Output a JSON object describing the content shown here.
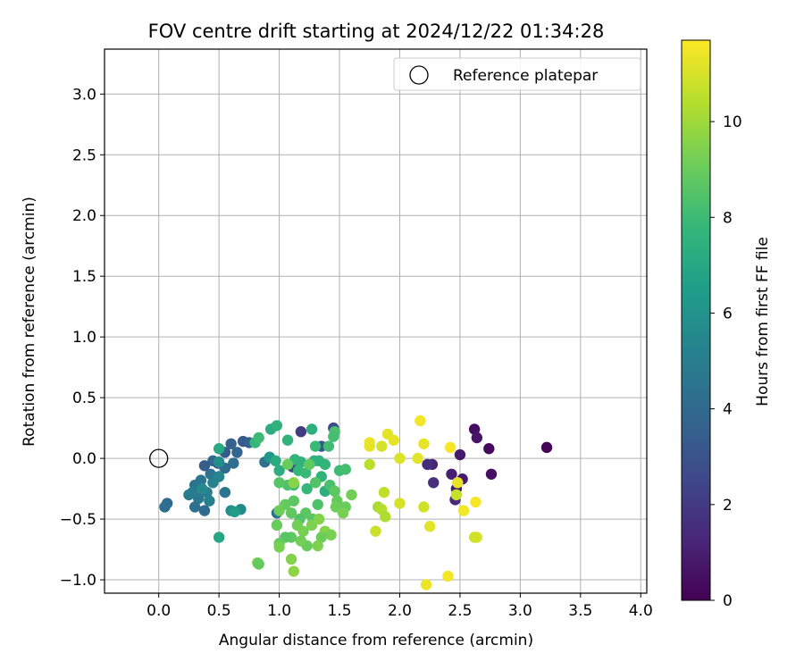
{
  "chart_data": {
    "type": "scatter",
    "title": "FOV centre drift starting at 2024/12/22 01:34:28",
    "xlabel": "Angular distance from reference (arcmin)",
    "ylabel": "Rotation from reference (arcmin)",
    "xlim": [
      -0.45,
      4.05
    ],
    "ylim": [
      -1.11,
      3.37
    ],
    "xticks": [
      "0.0",
      "0.5",
      "1.0",
      "1.5",
      "2.0",
      "2.5",
      "3.0",
      "3.5",
      "4.0"
    ],
    "yticks": [
      "−1.0",
      "−0.5",
      "0.0",
      "0.5",
      "1.0",
      "1.5",
      "2.0",
      "2.5",
      "3.0"
    ],
    "grid": true,
    "legend": {
      "placement": "top-right",
      "entries": [
        "Reference platepar"
      ]
    },
    "reference_point": {
      "x": 0.0,
      "y": 0.0
    },
    "colorbar": {
      "label": "Hours from first FF file",
      "range": [
        0,
        11.7
      ],
      "ticks": [
        "0",
        "2",
        "4",
        "6",
        "8",
        "10"
      ],
      "colormap": "viridis"
    },
    "series": [
      {
        "points": [
          [
            3.22,
            0.09,
            0.1
          ],
          [
            2.74,
            0.08,
            0.3
          ],
          [
            2.62,
            0.24,
            0.4
          ],
          [
            2.64,
            0.17,
            0.6
          ],
          [
            2.76,
            -0.13,
            0.5
          ],
          [
            2.5,
            0.03,
            0.8
          ],
          [
            2.43,
            -0.13,
            1.0
          ],
          [
            2.52,
            -0.17,
            0.9
          ],
          [
            2.47,
            -0.25,
            1.0
          ],
          [
            2.46,
            -0.34,
            1.3
          ],
          [
            2.27,
            -0.05,
            1.2
          ],
          [
            2.23,
            -0.05,
            1.5
          ],
          [
            2.28,
            -0.2,
            1.6
          ],
          [
            1.11,
            -0.07,
            2.5
          ],
          [
            1.18,
            0.22,
            2.1
          ],
          [
            1.35,
            0.1,
            3.0
          ],
          [
            1.45,
            0.25,
            2.6
          ],
          [
            0.7,
            0.14,
            3.2
          ],
          [
            0.75,
            0.13,
            3.5
          ],
          [
            0.65,
            0.05,
            3.8
          ],
          [
            0.6,
            0.12,
            3.6
          ],
          [
            0.55,
            0.05,
            3.4
          ],
          [
            0.49,
            -0.04,
            3.3
          ],
          [
            0.55,
            -0.08,
            4.1
          ],
          [
            0.62,
            -0.04,
            4.2
          ],
          [
            0.45,
            -0.02,
            3.9
          ],
          [
            0.43,
            -0.13,
            4.4
          ],
          [
            0.38,
            -0.06,
            3.4
          ],
          [
            0.35,
            -0.18,
            4.6
          ],
          [
            0.3,
            -0.22,
            4.5
          ],
          [
            0.28,
            -0.28,
            4.8
          ],
          [
            0.25,
            -0.3,
            4.9
          ],
          [
            0.33,
            -0.33,
            4.7
          ],
          [
            0.4,
            -0.28,
            5.0
          ],
          [
            0.45,
            -0.2,
            5.2
          ],
          [
            0.5,
            -0.15,
            5.3
          ],
          [
            0.3,
            -0.4,
            4.3
          ],
          [
            0.38,
            -0.43,
            4.1
          ],
          [
            0.07,
            -0.37,
            4.0
          ],
          [
            0.05,
            -0.4,
            4.2
          ],
          [
            0.55,
            -0.28,
            4.6
          ],
          [
            0.42,
            -0.35,
            5.1
          ],
          [
            0.36,
            -0.25,
            5.5
          ],
          [
            0.5,
            -0.03,
            5.7
          ],
          [
            0.88,
            -0.03,
            4.3
          ],
          [
            0.98,
            -0.45,
            4.4
          ],
          [
            0.6,
            -0.43,
            5.8
          ],
          [
            0.68,
            -0.42,
            5.6
          ],
          [
            0.63,
            -0.44,
            6.4
          ],
          [
            0.92,
            0.01,
            6.2
          ],
          [
            0.93,
            0.24,
            7.3
          ],
          [
            0.98,
            0.27,
            7.5
          ],
          [
            0.5,
            0.08,
            7.1
          ],
          [
            0.5,
            -0.65,
            6.9
          ],
          [
            0.8,
            0.13,
            7.8
          ],
          [
            0.83,
            0.17,
            8.0
          ],
          [
            1.07,
            0.15,
            7.6
          ],
          [
            0.97,
            -0.02,
            7.2
          ],
          [
            1.0,
            -0.1,
            7.3
          ],
          [
            1.13,
            -0.01,
            7.7
          ],
          [
            1.18,
            -0.03,
            7.5
          ],
          [
            1.16,
            -0.1,
            7.8
          ],
          [
            1.22,
            -0.12,
            7.9
          ],
          [
            1.27,
            0.24,
            7.4
          ],
          [
            1.29,
            -0.02,
            7.6
          ],
          [
            1.33,
            -0.02,
            7.5
          ],
          [
            1.38,
            -0.05,
            7.7
          ],
          [
            1.3,
            0.1,
            7.9
          ],
          [
            1.41,
            0.1,
            8.1
          ],
          [
            1.46,
            0.22,
            8.3
          ],
          [
            1.45,
            0.18,
            8.2
          ],
          [
            1.5,
            -0.1,
            8.0
          ],
          [
            1.55,
            -0.09,
            8.2
          ],
          [
            1.38,
            -0.27,
            7.4
          ],
          [
            1.35,
            -0.15,
            7.6
          ],
          [
            1.23,
            -0.25,
            7.8
          ],
          [
            1.12,
            -0.22,
            8.0
          ],
          [
            1.07,
            -0.22,
            8.4
          ],
          [
            1.0,
            -0.2,
            8.6
          ],
          [
            1.25,
            -0.05,
            8.8
          ],
          [
            1.3,
            -0.2,
            8.5
          ],
          [
            1.42,
            -0.22,
            8.3
          ],
          [
            1.46,
            -0.27,
            8.7
          ],
          [
            1.48,
            -0.35,
            8.9
          ],
          [
            1.47,
            -0.4,
            9.1
          ],
          [
            1.55,
            -0.4,
            9.0
          ],
          [
            1.53,
            -0.45,
            9.3
          ],
          [
            1.6,
            -0.3,
            9.2
          ],
          [
            1.32,
            -0.38,
            8.4
          ],
          [
            1.28,
            -0.5,
            8.6
          ],
          [
            1.22,
            -0.45,
            8.7
          ],
          [
            1.17,
            -0.5,
            8.5
          ],
          [
            1.1,
            -0.45,
            8.8
          ],
          [
            1.05,
            -0.38,
            8.9
          ],
          [
            1.0,
            -0.43,
            9.1
          ],
          [
            0.98,
            -0.55,
            9.0
          ],
          [
            1.15,
            -0.55,
            9.2
          ],
          [
            1.2,
            -0.6,
            9.3
          ],
          [
            1.27,
            -0.55,
            9.4
          ],
          [
            1.33,
            -0.5,
            9.5
          ],
          [
            1.38,
            -0.6,
            9.6
          ],
          [
            1.43,
            -0.63,
            9.3
          ],
          [
            1.35,
            -0.65,
            9.1
          ],
          [
            1.32,
            -0.72,
            9.4
          ],
          [
            1.23,
            -0.72,
            9.0
          ],
          [
            1.18,
            -0.68,
            9.2
          ],
          [
            1.1,
            -0.65,
            8.8
          ],
          [
            1.05,
            -0.65,
            8.6
          ],
          [
            1.0,
            -0.7,
            8.9
          ],
          [
            1.0,
            -0.73,
            9.3
          ],
          [
            1.1,
            -0.83,
            9.5
          ],
          [
            1.12,
            -0.93,
            9.7
          ],
          [
            0.82,
            -0.86,
            9.3
          ],
          [
            0.83,
            -0.87,
            8.9
          ],
          [
            1.12,
            -0.35,
            8.7
          ],
          [
            1.07,
            -0.05,
            9.0
          ],
          [
            1.12,
            -0.2,
            9.6
          ],
          [
            1.75,
            -0.05,
            10.5
          ],
          [
            1.82,
            -0.4,
            10.2
          ],
          [
            1.85,
            -0.42,
            10.4
          ],
          [
            1.88,
            -0.48,
            10.3
          ],
          [
            1.87,
            -0.28,
            10.6
          ],
          [
            1.8,
            -0.6,
            10.8
          ],
          [
            1.85,
            0.1,
            11.0
          ],
          [
            1.9,
            0.2,
            11.2
          ],
          [
            1.95,
            0.15,
            11.3
          ],
          [
            1.75,
            0.13,
            11.4
          ],
          [
            1.75,
            0.1,
            11.3
          ],
          [
            2.0,
            0.0,
            11.1
          ],
          [
            2.15,
            0.0,
            11.2
          ],
          [
            2.17,
            0.31,
            11.5
          ],
          [
            2.2,
            0.12,
            11.3
          ],
          [
            2.0,
            -0.37,
            11.0
          ],
          [
            2.2,
            -0.4,
            10.9
          ],
          [
            2.25,
            -0.56,
            11.2
          ],
          [
            2.22,
            -1.04,
            11.4
          ],
          [
            2.4,
            -0.97,
            11.5
          ],
          [
            2.42,
            0.09,
            11.6
          ],
          [
            2.48,
            -0.2,
            11.3
          ],
          [
            2.53,
            -0.43,
            11.5
          ],
          [
            2.63,
            -0.36,
            11.6
          ],
          [
            2.64,
            -0.65,
            11.1
          ],
          [
            2.47,
            -0.3,
            10.7
          ],
          [
            2.62,
            -0.65,
            10.9
          ]
        ]
      }
    ]
  }
}
